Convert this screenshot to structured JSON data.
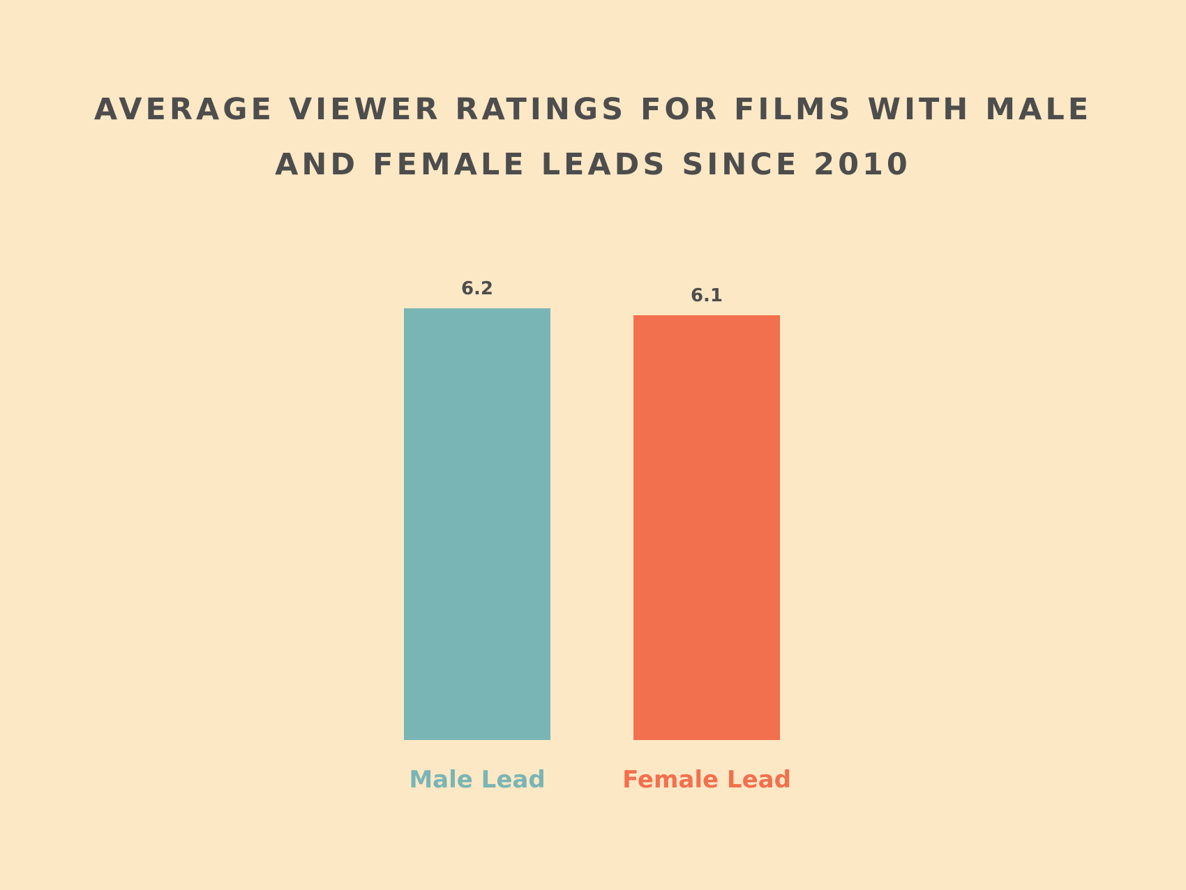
{
  "background": "#fde8c5",
  "text_color": "#4d4d4d",
  "chart_data": {
    "type": "bar",
    "title": "AVERAGE VIEWER RATINGS FOR FILMS WITH MALE AND FEMALE LEADS SINCE 2010",
    "title_lines": [
      "AVERAGE VIEWER RATINGS FOR FILMS WITH MALE",
      "AND FEMALE LEADS SINCE 2010"
    ],
    "categories": [
      "Male Lead",
      "Female Lead"
    ],
    "values": [
      6.2,
      6.1
    ],
    "value_labels": [
      "6.2",
      "6.1"
    ],
    "colors": [
      "#7ab5b5",
      "#f2704e"
    ],
    "xlabel": "",
    "ylabel": "",
    "ylim": [
      0,
      6.2
    ],
    "grid": false,
    "legend": "none"
  }
}
